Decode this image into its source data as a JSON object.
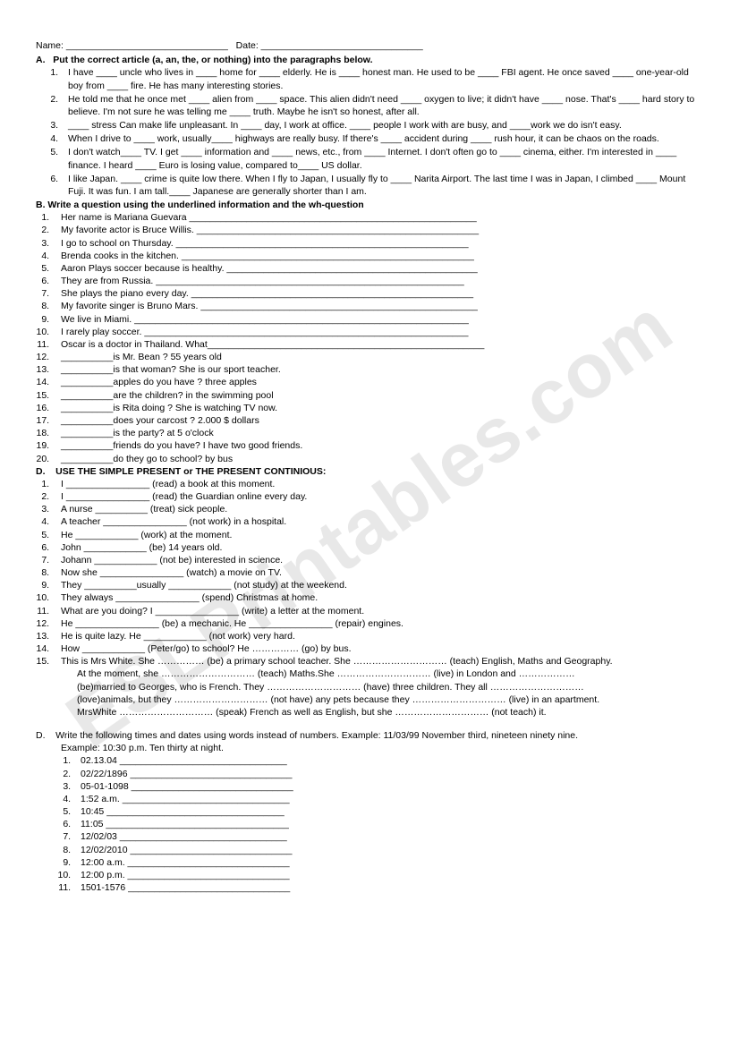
{
  "watermark": "ESLPrintables.com",
  "header": {
    "name_label": "Name:",
    "date_label": "Date:"
  },
  "A": {
    "title": "Put the correct article (a, an, the, or nothing) into the paragraphs below.",
    "items": [
      "I have ____ uncle who lives in ____ home for ____ elderly. He is ____ honest man. He used to be ____ FBI agent. He once saved ____ one-year-old boy from ____ fire. He has many interesting stories.",
      "He told me that he once met ____ alien from ____ space. This alien didn't need ____ oxygen to live; it didn't have ____ nose. That's ____ hard story to believe. I'm not sure he was telling me ____ truth. Maybe he isn't so honest, after all.",
      "____ stress Can make life unpleasant. In ____ day, I work at office. ____ people I work with are busy, and ____work we do isn't easy.",
      "When I drive to ____ work, usually____ highways are really busy. If there's ____ accident during ____ rush hour, it can be chaos on the roads.",
      "I don't watch____ TV. I get ____ information and ____ news, etc., from ____ Internet. I don't often go to ____ cinema, either. I'm interested in ____ finance. I heard ____ Euro is losing value, compared to____ US dollar.",
      "I like Japan. ____ crime is quite low there. When I fly to Japan, I usually fly to ____ Narita Airport. The last time I was in Japan, I climbed ____ Mount Fuji. It was fun. I am tall.____ Japanese are generally shorter than I am."
    ]
  },
  "B": {
    "title": "B. Write a question using the underlined information and the wh-question",
    "items": [
      "Her name is Mariana Guevara _______________________________________________________",
      "My favorite actor is Bruce Willis. ______________________________________________________",
      "I go to school on Thursday. ________________________________________________________",
      "Brenda cooks in the kitchen. ________________________________________________________",
      "Aaron Plays soccer because is healthy. ________________________________________________",
      "They are from Russia. ___________________________________________________________",
      "She plays the piano every day. ______________________________________________________",
      "My favorite singer is Bruno Mars. _____________________________________________________",
      "We live in Miami. ________________________________________________________________",
      "I rarely play soccer. ______________________________________________________________",
      "Oscar is a doctor in Thailand. What_____________________________________________________",
      "__________is Mr. Bean ?                  55 years old",
      "__________is that woman?              She is our sport teacher.",
      "__________apples do you have ?     three apples",
      "__________are the children?            in the swimming pool",
      "__________is Rita doing ?                She is watching TV now.",
      "__________does your carcost ?       2.000 $ dollars",
      "__________is the party?                   at 5 o'clock",
      "__________friends do you have?     I have two good friends.",
      "__________do they go to school?    by bus"
    ]
  },
  "D1": {
    "title": "USE THE SIMPLE PRESENT or THE PRESENT CONTINIOUS:",
    "items": [
      "I ________________ (read) a book at this moment.",
      "I ________________ (read) the Guardian online every day.",
      "A nurse __________ (treat) sick people.",
      "A teacher ________________ (not work) in a hospital.",
      "He ____________ (work) at the moment.",
      "John ____________ (be) 14 years old.",
      "Johann ____________ (not be) interested in science.",
      "Now she ________________ (watch) a movie on TV.",
      "They __________usually ____________ (not study) at the weekend.",
      "They always ________________ (spend) Christmas at home.",
      "What are you doing? I ________________ (write) a letter at the moment.",
      "He ________________ (be) a mechanic. He ________________ (repair) engines.",
      "He is quite lazy. He ____________ (not work) very hard.",
      "How ____________ (Peter/go) to school? He …………… (go) by bus.",
      "This is Mrs White. She …………… (be) a primary school teacher. She ………………………… (teach) English, Maths and Geography."
    ],
    "continuation": [
      "At the moment, she ………………………… (teach) Maths.She ………………………… (live) in London and ………………",
      "(be)married to Georges, who is French. They ………………………… (have) three children. They all …………………………",
      "(love)animals, but they ………………………… (not have) any pets because they ………………………… (live) in an apartment.",
      "MrsWhite ………………………… (speak) French as well as English, but she ………………………… (not teach) it."
    ]
  },
  "D2": {
    "title": "Write the following times and dates using words instead of numbers. Example: 11/03/99  November third, nineteen ninety nine.",
    "subtitle": "Example: 10:30 p.m.  Ten thirty at night.",
    "items": [
      "02.13.04 ________________________________",
      "02/22/1896 _______________________________",
      "05-01-1098 _______________________________",
      "1:52 a.m. ________________________________",
      "10:45   __________________________________",
      "11:05 ___________________________________",
      "12/02/03 ________________________________",
      "12/02/2010 _______________________________",
      "12:00 a.m. _______________________________",
      "12:00 p.m. _______________________________",
      "1501-1576 _______________________________"
    ]
  }
}
